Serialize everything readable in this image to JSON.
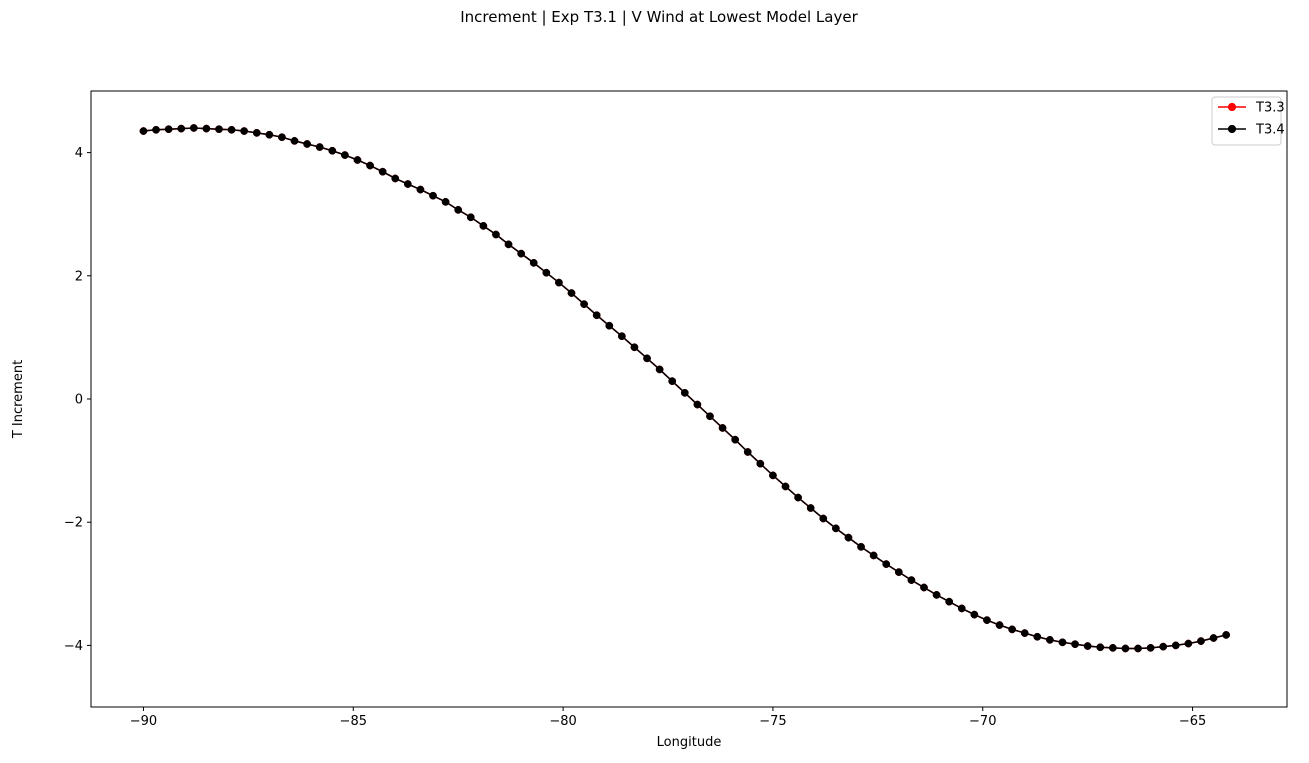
{
  "chart_data": {
    "type": "line",
    "title": "Increment | Exp T3.1 | V Wind at Lowest Model Layer",
    "xlabel": "Longitude",
    "ylabel": "T Increment",
    "xlim": [
      -91.25,
      -62.75
    ],
    "ylim": [
      -5,
      5
    ],
    "xticks": [
      -90,
      -85,
      -80,
      -75,
      -70,
      -65
    ],
    "xtick_labels": [
      "−90",
      "−85",
      "−80",
      "−75",
      "−70",
      "−65"
    ],
    "yticks": [
      -4,
      -2,
      0,
      2,
      4
    ],
    "ytick_labels": [
      "−4",
      "−2",
      "0",
      "2",
      "4"
    ],
    "grid": false,
    "legend_position": "top-right",
    "x": [
      -90.0,
      -89.7,
      -89.4,
      -89.1,
      -88.8,
      -88.5,
      -88.2,
      -87.9,
      -87.6,
      -87.3,
      -87.0,
      -86.7,
      -86.4,
      -86.1,
      -85.8,
      -85.5,
      -85.2,
      -84.9,
      -84.6,
      -84.3,
      -84.0,
      -83.7,
      -83.4,
      -83.1,
      -82.8,
      -82.5,
      -82.2,
      -81.9,
      -81.6,
      -81.3,
      -81.0,
      -80.7,
      -80.4,
      -80.1,
      -79.8,
      -79.5,
      -79.2,
      -78.9,
      -78.6,
      -78.3,
      -78.0,
      -77.7,
      -77.4,
      -77.1,
      -76.8,
      -76.5,
      -76.2,
      -75.9,
      -75.6,
      -75.3,
      -75.0,
      -74.7,
      -74.4,
      -74.1,
      -73.8,
      -73.5,
      -73.2,
      -72.9,
      -72.6,
      -72.3,
      -72.0,
      -71.7,
      -71.4,
      -71.1,
      -70.8,
      -70.5,
      -70.2,
      -69.9,
      -69.6,
      -69.3,
      -69.0,
      -68.7,
      -68.4,
      -68.1,
      -67.8,
      -67.5,
      -67.2,
      -66.9,
      -66.6,
      -66.3,
      -66.0,
      -65.7,
      -65.4,
      -65.1,
      -64.8,
      -64.5,
      -64.2
    ],
    "series": [
      {
        "name": "T3.3",
        "color": "#ff0000",
        "values": [
          4.35,
          4.37,
          4.38,
          4.39,
          4.4,
          4.39,
          4.38,
          4.37,
          4.35,
          4.32,
          4.29,
          4.25,
          4.19,
          4.14,
          4.09,
          4.03,
          3.96,
          3.88,
          3.79,
          3.69,
          3.58,
          3.49,
          3.4,
          3.3,
          3.2,
          3.07,
          2.95,
          2.81,
          2.67,
          2.51,
          2.36,
          2.21,
          2.05,
          1.89,
          1.72,
          1.54,
          1.36,
          1.19,
          1.02,
          0.84,
          0.66,
          0.48,
          0.29,
          0.1,
          -0.09,
          -0.28,
          -0.47,
          -0.66,
          -0.86,
          -1.05,
          -1.24,
          -1.42,
          -1.6,
          -1.77,
          -1.94,
          -2.1,
          -2.25,
          -2.4,
          -2.54,
          -2.68,
          -2.81,
          -2.94,
          -3.06,
          -3.18,
          -3.29,
          -3.4,
          -3.5,
          -3.59,
          -3.67,
          -3.74,
          -3.8,
          -3.86,
          -3.91,
          -3.95,
          -3.98,
          -4.01,
          -4.03,
          -4.04,
          -4.05,
          -4.05,
          -4.04,
          -4.02,
          -4.0,
          -3.97,
          -3.93,
          -3.88,
          -3.83
        ]
      },
      {
        "name": "T3.4",
        "color": "#000000",
        "values": [
          4.35,
          4.37,
          4.38,
          4.39,
          4.4,
          4.39,
          4.38,
          4.37,
          4.35,
          4.32,
          4.29,
          4.25,
          4.19,
          4.14,
          4.09,
          4.03,
          3.96,
          3.88,
          3.79,
          3.69,
          3.58,
          3.49,
          3.4,
          3.3,
          3.2,
          3.07,
          2.95,
          2.81,
          2.67,
          2.51,
          2.36,
          2.21,
          2.05,
          1.89,
          1.72,
          1.54,
          1.36,
          1.19,
          1.02,
          0.84,
          0.66,
          0.48,
          0.29,
          0.1,
          -0.09,
          -0.28,
          -0.47,
          -0.66,
          -0.86,
          -1.05,
          -1.24,
          -1.42,
          -1.6,
          -1.77,
          -1.94,
          -2.1,
          -2.25,
          -2.4,
          -2.54,
          -2.68,
          -2.81,
          -2.94,
          -3.06,
          -3.18,
          -3.29,
          -3.4,
          -3.5,
          -3.59,
          -3.67,
          -3.74,
          -3.8,
          -3.86,
          -3.91,
          -3.95,
          -3.98,
          -4.01,
          -4.03,
          -4.04,
          -4.05,
          -4.05,
          -4.04,
          -4.02,
          -4.0,
          -3.97,
          -3.93,
          -3.88,
          -3.83
        ]
      }
    ]
  }
}
